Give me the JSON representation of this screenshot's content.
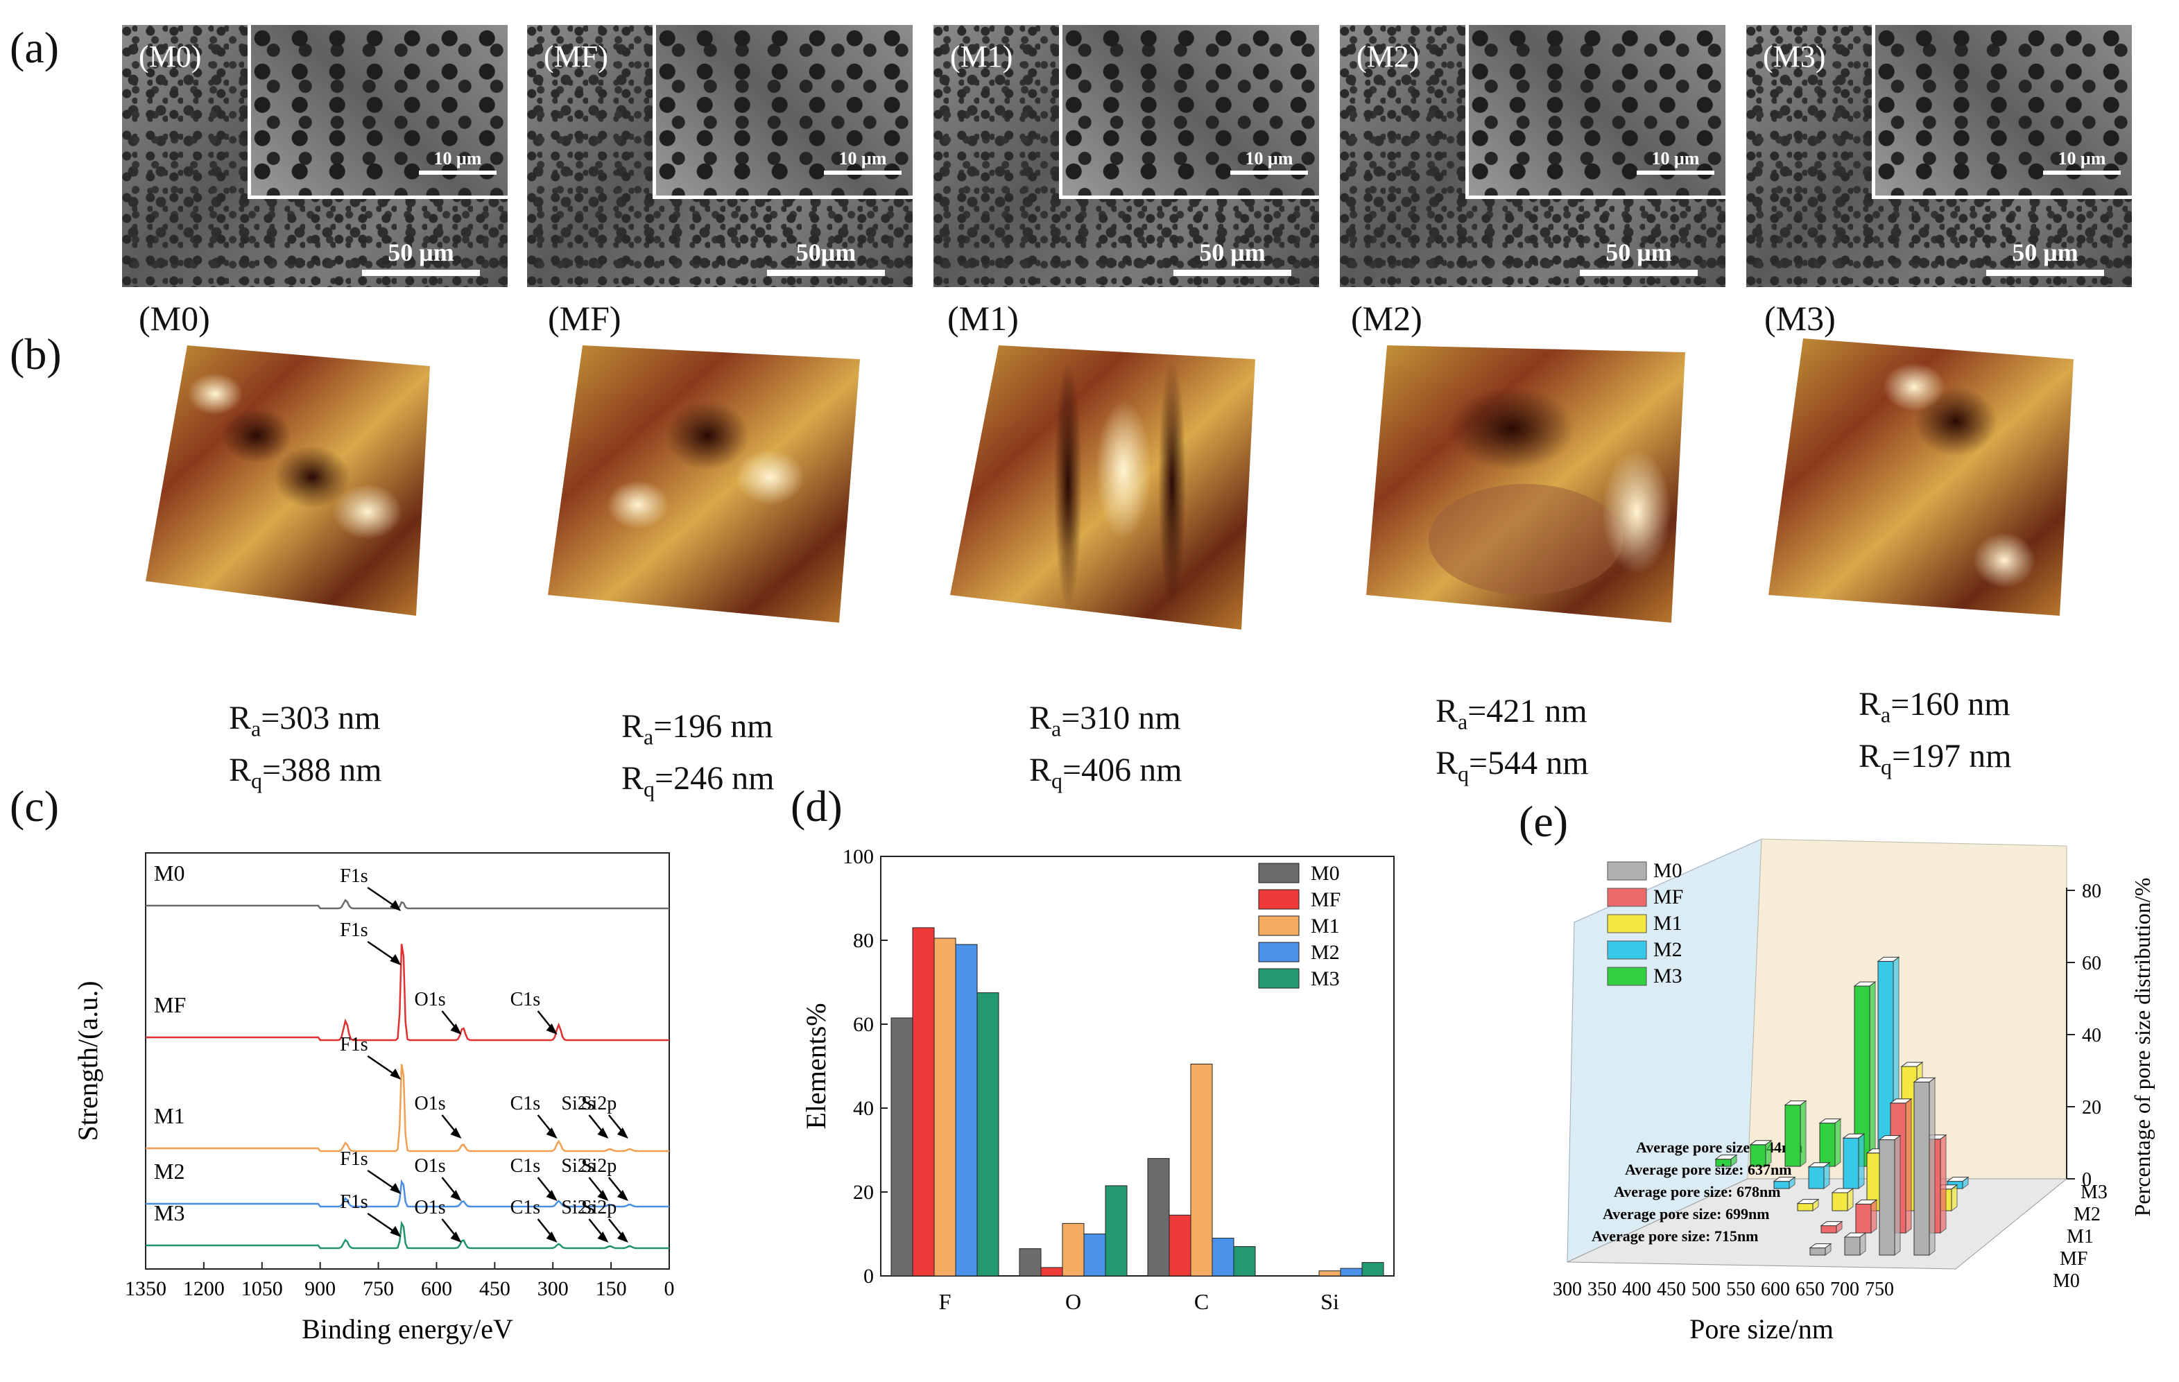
{
  "panel_labels": {
    "a": "(a)",
    "b": "(b)",
    "c": "(c)",
    "d": "(d)",
    "e": "(e)"
  },
  "sem": [
    {
      "tag": "(M0)",
      "scale_big": "50 μm",
      "scale_small": "10 μm"
    },
    {
      "tag": "(MF)",
      "scale_big": "50μm",
      "scale_small": "10 μm"
    },
    {
      "tag": "(M1)",
      "scale_big": "50 μm",
      "scale_small": "10 μm"
    },
    {
      "tag": "(M2)",
      "scale_big": "50 μm",
      "scale_small": "10 μm"
    },
    {
      "tag": "(M3)",
      "scale_big": "50 μm",
      "scale_small": "10 μm"
    }
  ],
  "afm": [
    {
      "tag": "(M0)",
      "ra": "=303 nm",
      "rq": "=388 nm"
    },
    {
      "tag": "(MF)",
      "ra": "=196 nm",
      "rq": "=246 nm"
    },
    {
      "tag": "(M1)",
      "ra": "=310 nm",
      "rq": "=406 nm"
    },
    {
      "tag": "(M2)",
      "ra": "=421 nm",
      "rq": "=544 nm"
    },
    {
      "tag": "(M3)",
      "ra": "=160 nm",
      "rq": "=197 nm"
    }
  ],
  "roughness_symbols": {
    "r": "R",
    "a": "a",
    "q": "q"
  },
  "chart_data": [
    {
      "type": "line",
      "xlabel": "Binding energy/eV",
      "ylabel": "Strength/(a.u.)",
      "xlim": [
        1350,
        0
      ],
      "x_ticks": [
        1350,
        1200,
        1050,
        900,
        750,
        600,
        450,
        300,
        150,
        0
      ],
      "series": [
        {
          "name": "M0",
          "color": "#6a6a6a",
          "peaks": [
            {
              "x": 688,
              "label": "F1s"
            }
          ]
        },
        {
          "name": "MF",
          "color": "#e03030",
          "peaks": [
            {
              "x": 688,
              "label": "F1s"
            },
            {
              "x": 532,
              "label": "O1s"
            },
            {
              "x": 285,
              "label": "C1s"
            }
          ]
        },
        {
          "name": "M1",
          "color": "#f0a050",
          "peaks": [
            {
              "x": 688,
              "label": "F1s"
            },
            {
              "x": 532,
              "label": "O1s"
            },
            {
              "x": 285,
              "label": "C1s"
            },
            {
              "x": 153,
              "label": "Si2s"
            },
            {
              "x": 102,
              "label": "Si2p"
            }
          ]
        },
        {
          "name": "M2",
          "color": "#4a8ee0",
          "peaks": [
            {
              "x": 688,
              "label": "F1s"
            },
            {
              "x": 532,
              "label": "O1s"
            },
            {
              "x": 285,
              "label": "C1s"
            },
            {
              "x": 153,
              "label": "Si2s"
            },
            {
              "x": 102,
              "label": "Si2p"
            }
          ]
        },
        {
          "name": "M3",
          "color": "#20946a",
          "peaks": [
            {
              "x": 688,
              "label": "F1s"
            },
            {
              "x": 532,
              "label": "O1s"
            },
            {
              "x": 285,
              "label": "C1s"
            },
            {
              "x": 153,
              "label": "Si2s"
            },
            {
              "x": 102,
              "label": "Si2p"
            }
          ]
        }
      ]
    },
    {
      "type": "bar",
      "categories": [
        "F",
        "O",
        "C",
        "Si"
      ],
      "ylabel": "Elements%",
      "ylim": [
        0,
        100
      ],
      "y_ticks": [
        0,
        20,
        40,
        60,
        80,
        100
      ],
      "legend_position": "top-right",
      "series": [
        {
          "name": "M0",
          "color": "#6b6b6b",
          "values": [
            61.5,
            6.5,
            28,
            0
          ]
        },
        {
          "name": "MF",
          "color": "#f03a3a",
          "values": [
            83,
            2,
            14.5,
            0
          ]
        },
        {
          "name": "M1",
          "color": "#f4ac62",
          "values": [
            80.5,
            12.5,
            50.5,
            1.2
          ]
        },
        {
          "name": "M2",
          "color": "#4b92ea",
          "values": [
            79,
            10,
            9,
            1.8
          ]
        },
        {
          "name": "M3",
          "color": "#229970",
          "values": [
            67.5,
            21.5,
            7,
            3.2
          ]
        }
      ]
    },
    {
      "type": "bar",
      "subtype": "3d-bar",
      "xlabel": "Pore size/nm",
      "zlabel": "Percentage of pore size distribution/%",
      "categories": [
        300,
        350,
        400,
        450,
        500,
        550,
        600,
        650,
        700,
        750
      ],
      "zlim": [
        0,
        80
      ],
      "z_ticks": [
        0,
        20,
        40,
        60,
        80
      ],
      "legend_position": "top-left",
      "series": [
        {
          "name": "M0",
          "color": "#b0b0b0",
          "average_label": "Average pore size:  715nm",
          "values": [
            0,
            0,
            0,
            0,
            0,
            0,
            2,
            5,
            32,
            48
          ]
        },
        {
          "name": "MF",
          "color": "#ee6a6a",
          "average_label": "Average pore size:  699nm",
          "values": [
            0,
            0,
            0,
            0,
            0,
            0,
            2,
            8,
            36,
            26
          ]
        },
        {
          "name": "M1",
          "color": "#f2e840",
          "average_label": "Average pore size:  678nm",
          "values": [
            0,
            0,
            0,
            0,
            0,
            2,
            5,
            16,
            40,
            6
          ]
        },
        {
          "name": "M2",
          "color": "#38c8e8",
          "average_label": "Average pore size:  637nm",
          "values": [
            0,
            0,
            0,
            0,
            2,
            6,
            14,
            63,
            4,
            2
          ]
        },
        {
          "name": "M3",
          "color": "#30d040",
          "average_label": "Average pore size:  544nm",
          "values": [
            0,
            0,
            2,
            6,
            17,
            12,
            50,
            7,
            0,
            0
          ]
        }
      ]
    }
  ]
}
